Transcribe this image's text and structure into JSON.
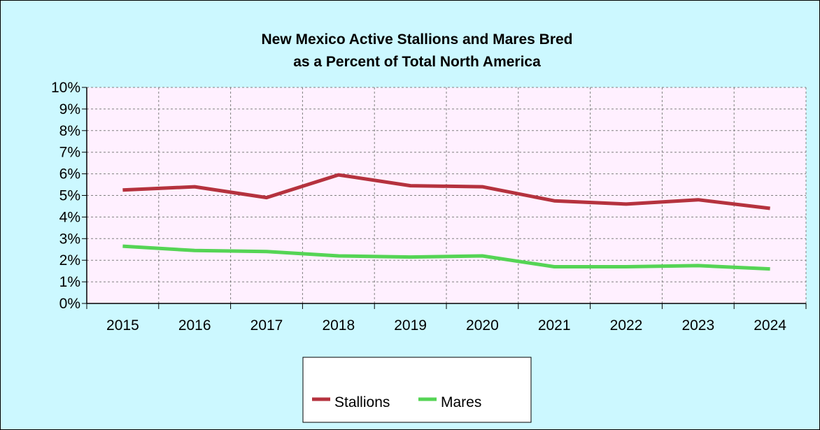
{
  "chart_data": {
    "type": "line",
    "title": "New Mexico Active Stallions and Mares Bred",
    "subtitle": "as a Percent of Total North America",
    "categories": [
      "2015",
      "2016",
      "2017",
      "2018",
      "2019",
      "2020",
      "2021",
      "2022",
      "2023",
      "2024"
    ],
    "series": [
      {
        "name": "Stallions",
        "color": "#b5323e",
        "values": [
          5.25,
          5.4,
          4.9,
          5.95,
          5.45,
          5.4,
          4.75,
          4.6,
          4.8,
          4.4
        ]
      },
      {
        "name": "Mares",
        "color": "#55d455",
        "values": [
          2.65,
          2.45,
          2.4,
          2.2,
          2.15,
          2.2,
          1.7,
          1.7,
          1.75,
          1.6
        ]
      }
    ],
    "y_ticks": [
      "0%",
      "1%",
      "2%",
      "3%",
      "4%",
      "5%",
      "6%",
      "7%",
      "8%",
      "9%",
      "10%"
    ],
    "ylim": [
      0,
      10
    ],
    "y_unit": "%",
    "xlabel": "",
    "ylabel": "",
    "grid": true,
    "legend_position": "bottom",
    "plot_background": "#fff0ff",
    "page_background": "#ccf8ff"
  }
}
